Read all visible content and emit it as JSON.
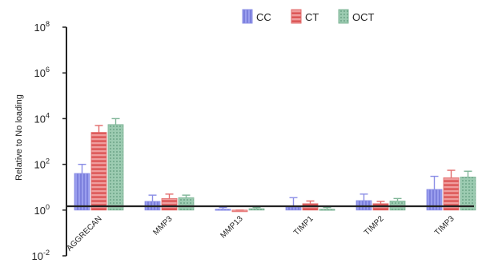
{
  "chart_data": {
    "type": "bar",
    "ylabel": "Relative to No loading",
    "yscale": "log10",
    "ylim_exponent": [
      -2,
      8
    ],
    "yticks": [
      {
        "base": "10",
        "exp": "-2"
      },
      {
        "base": "10",
        "exp": "0"
      },
      {
        "base": "10",
        "exp": "2"
      },
      {
        "base": "10",
        "exp": "4"
      },
      {
        "base": "10",
        "exp": "6"
      },
      {
        "base": "10",
        "exp": "8"
      }
    ],
    "baseline_exponent": 0,
    "legend_position": "top-right",
    "categories": [
      "AGGRECAN",
      "MMP3",
      "MMP13",
      "TIMP1",
      "TIMP2",
      "TIMP3"
    ],
    "series": [
      {
        "name": "CC",
        "color": "#8a8ee6",
        "pattern": "vertical-lines",
        "values": [
          40,
          2.4,
          1.1,
          1.35,
          2.6,
          8
        ],
        "error_up": [
          100,
          4.5,
          1.3,
          3.5,
          5,
          30
        ]
      },
      {
        "name": "CT",
        "color": "#e26a6a",
        "pattern": "horizontal-lines",
        "values": [
          2500,
          3.2,
          0.85,
          1.9,
          1.9,
          26
        ],
        "error_up": [
          5000,
          5,
          1.0,
          2.5,
          2.4,
          55
        ]
      },
      {
        "name": "OCT",
        "color": "#7fb597",
        "pattern": "dots",
        "values": [
          5500,
          3.5,
          1.15,
          1.1,
          2.5,
          28
        ],
        "error_up": [
          10000,
          4.5,
          1.3,
          1.3,
          3.2,
          50
        ]
      }
    ]
  }
}
